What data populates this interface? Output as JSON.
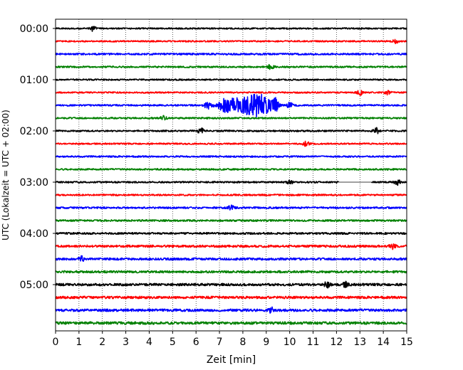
{
  "chart_data": {
    "type": "line",
    "title": "",
    "xlabel": "Zeit  [min]",
    "ylabel": "UTC (Lokalzeit = UTC + 02:00)",
    "xlim": [
      0,
      15
    ],
    "x_ticks": [
      0,
      1,
      2,
      3,
      4,
      5,
      6,
      7,
      8,
      9,
      10,
      11,
      12,
      13,
      14,
      15
    ],
    "x_tick_labels": [
      "0",
      "1",
      "2",
      "3",
      "4",
      "5",
      "6",
      "7",
      "8",
      "9",
      "10",
      "11",
      "12",
      "13",
      "14",
      "15"
    ],
    "y_tick_labels": [
      "00:00",
      "01:00",
      "02:00",
      "03:00",
      "04:00",
      "05:00"
    ],
    "y_tick_trace_index": [
      0,
      4,
      8,
      12,
      16,
      20
    ],
    "grid": "vertical dotted at each minute",
    "colors_cycle": [
      "#000000",
      "#ff0000",
      "#0000ff",
      "#008000"
    ],
    "traces": [
      {
        "start": "00:00",
        "color": "#000000",
        "noise": 0.45,
        "events": [
          {
            "t": 1.6,
            "a": 1.3
          }
        ]
      },
      {
        "start": "00:15",
        "color": "#ff0000",
        "noise": 0.45,
        "events": [
          {
            "t": 14.5,
            "a": 1.2
          }
        ]
      },
      {
        "start": "00:30",
        "color": "#0000ff",
        "noise": 0.55,
        "events": []
      },
      {
        "start": "00:45",
        "color": "#008000",
        "noise": 0.5,
        "events": [
          {
            "t": 9.2,
            "a": 1.4
          }
        ]
      },
      {
        "start": "01:00",
        "color": "#000000",
        "noise": 0.45,
        "events": []
      },
      {
        "start": "01:15",
        "color": "#ff0000",
        "noise": 0.45,
        "events": [
          {
            "t": 13.0,
            "a": 1.3
          },
          {
            "t": 14.2,
            "a": 1.1
          }
        ]
      },
      {
        "start": "01:30",
        "color": "#0000ff",
        "noise": 0.5,
        "events": [
          {
            "t": 6.5,
            "a": 2.2
          },
          {
            "t": 7.4,
            "a": 4.2
          },
          {
            "t": 8.2,
            "a": 3.8
          },
          {
            "t": 8.8,
            "a": 5.2
          },
          {
            "t": 9.4,
            "a": 3.0
          },
          {
            "t": 10.0,
            "a": 1.4
          }
        ]
      },
      {
        "start": "01:45",
        "color": "#008000",
        "noise": 0.5,
        "events": [
          {
            "t": 4.6,
            "a": 1.3
          }
        ]
      },
      {
        "start": "02:00",
        "color": "#000000",
        "noise": 0.5,
        "events": [
          {
            "t": 6.2,
            "a": 1.5
          },
          {
            "t": 13.7,
            "a": 1.5
          }
        ]
      },
      {
        "start": "02:15",
        "color": "#ff0000",
        "noise": 0.45,
        "events": [
          {
            "t": 10.7,
            "a": 1.3
          }
        ]
      },
      {
        "start": "02:30",
        "color": "#0000ff",
        "noise": 0.5,
        "events": []
      },
      {
        "start": "02:45",
        "color": "#008000",
        "noise": 0.5,
        "events": []
      },
      {
        "start": "03:00",
        "color": "#000000",
        "noise": 0.5,
        "gap": [
          12.1,
          13.5
        ],
        "events": [
          {
            "t": 10.0,
            "a": 1.2
          },
          {
            "t": 14.6,
            "a": 1.4
          }
        ]
      },
      {
        "start": "03:15",
        "color": "#ff0000",
        "noise": 0.5,
        "events": []
      },
      {
        "start": "03:30",
        "color": "#0000ff",
        "noise": 0.55,
        "events": [
          {
            "t": 7.5,
            "a": 1.3
          }
        ]
      },
      {
        "start": "03:45",
        "color": "#008000",
        "noise": 0.55,
        "events": []
      },
      {
        "start": "04:00",
        "color": "#000000",
        "noise": 0.6,
        "events": []
      },
      {
        "start": "04:15",
        "color": "#ff0000",
        "noise": 0.7,
        "events": [
          {
            "t": 14.4,
            "a": 1.3
          }
        ]
      },
      {
        "start": "04:30",
        "color": "#0000ff",
        "noise": 0.7,
        "events": [
          {
            "t": 1.1,
            "a": 1.3
          }
        ]
      },
      {
        "start": "04:45",
        "color": "#008000",
        "noise": 0.7,
        "events": []
      },
      {
        "start": "05:00",
        "color": "#000000",
        "noise": 0.75,
        "events": [
          {
            "t": 11.6,
            "a": 1.4
          },
          {
            "t": 12.4,
            "a": 1.3
          }
        ]
      },
      {
        "start": "05:15",
        "color": "#ff0000",
        "noise": 0.75,
        "events": []
      },
      {
        "start": "05:30",
        "color": "#0000ff",
        "noise": 0.8,
        "events": [
          {
            "t": 9.2,
            "a": 1.3
          }
        ]
      },
      {
        "start": "05:45",
        "color": "#008000",
        "noise": 0.8,
        "events": []
      }
    ]
  }
}
